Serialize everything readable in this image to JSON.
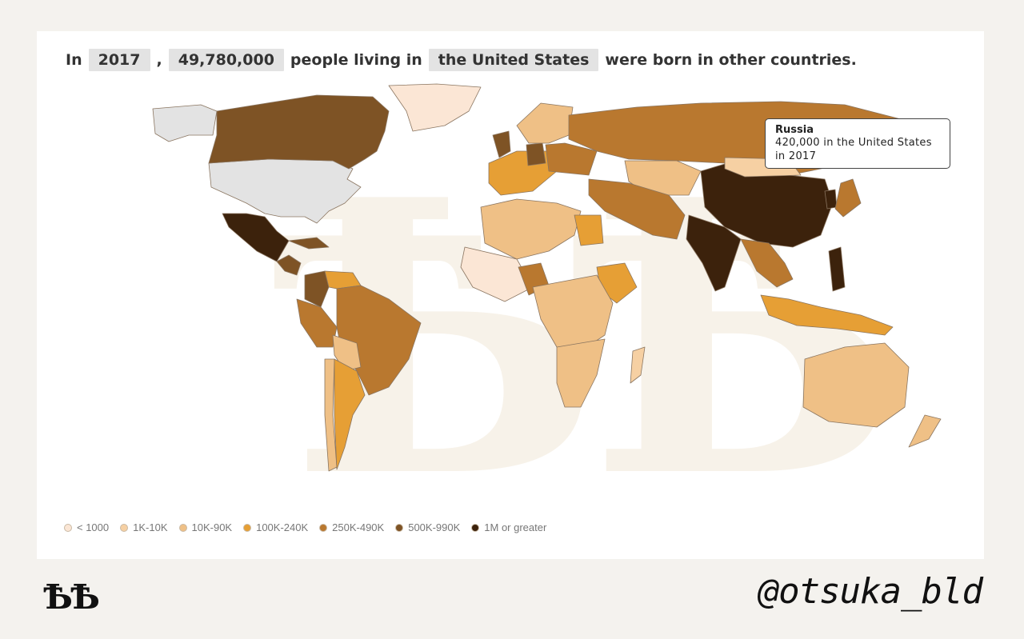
{
  "headline": {
    "prefix": "In",
    "year": "2017",
    "comma": ",",
    "count": "49,780,000",
    "middle": "people living in",
    "country": "the United States",
    "suffix": "were born in other countries."
  },
  "tooltip": {
    "title": "Russia",
    "line1": "420,000 in the United States",
    "line2": "in 2017"
  },
  "legend": [
    {
      "label": "< 1000",
      "color": "#fbe6d5"
    },
    {
      "label": "1K-10K",
      "color": "#f6d0a3"
    },
    {
      "label": "10K-90K",
      "color": "#efc086"
    },
    {
      "label": "100K-240K",
      "color": "#e69f35"
    },
    {
      "label": "250K-490K",
      "color": "#b9782f"
    },
    {
      "label": "500K-990K",
      "color": "#7e5325"
    },
    {
      "label": "1M or greater",
      "color": "#3c220c"
    }
  ],
  "colors": {
    "destination": "#e3e3e3",
    "no_data": "#ffffff",
    "country_stroke": "#8a7560"
  },
  "map_countries": [
    {
      "name": "United States",
      "bin": "destination"
    },
    {
      "name": "Alaska",
      "bin": "destination"
    },
    {
      "name": "Canada",
      "bin": "500K-990K"
    },
    {
      "name": "Greenland",
      "bin": "< 1000"
    },
    {
      "name": "Mexico",
      "bin": "1M or greater"
    },
    {
      "name": "Central America",
      "bin": "500K-990K"
    },
    {
      "name": "Cuba",
      "bin": "500K-990K"
    },
    {
      "name": "Colombia",
      "bin": "500K-990K"
    },
    {
      "name": "Venezuela",
      "bin": "100K-240K"
    },
    {
      "name": "Brazil",
      "bin": "250K-490K"
    },
    {
      "name": "Peru",
      "bin": "250K-490K"
    },
    {
      "name": "Bolivia",
      "bin": "10K-90K"
    },
    {
      "name": "Chile",
      "bin": "10K-90K"
    },
    {
      "name": "Argentina",
      "bin": "100K-240K"
    },
    {
      "name": "Europe West",
      "bin": "100K-240K"
    },
    {
      "name": "United Kingdom",
      "bin": "500K-990K"
    },
    {
      "name": "Germany",
      "bin": "500K-990K"
    },
    {
      "name": "Poland",
      "bin": "250K-490K"
    },
    {
      "name": "Scandinavia",
      "bin": "10K-90K"
    },
    {
      "name": "Russia",
      "bin": "250K-490K"
    },
    {
      "name": "Kazakhstan",
      "bin": "10K-90K"
    },
    {
      "name": "Middle East",
      "bin": "250K-490K"
    },
    {
      "name": "North Africa",
      "bin": "10K-90K"
    },
    {
      "name": "Egypt",
      "bin": "100K-240K"
    },
    {
      "name": "West Africa",
      "bin": "< 1000"
    },
    {
      "name": "Nigeria",
      "bin": "250K-490K"
    },
    {
      "name": "Ethiopia",
      "bin": "100K-240K"
    },
    {
      "name": "Central Africa",
      "bin": "10K-90K"
    },
    {
      "name": "Southern Africa",
      "bin": "10K-90K"
    },
    {
      "name": "Madagascar",
      "bin": "1K-10K"
    },
    {
      "name": "China",
      "bin": "1M or greater"
    },
    {
      "name": "India",
      "bin": "1M or greater"
    },
    {
      "name": "Mongolia",
      "bin": "1K-10K"
    },
    {
      "name": "Korea",
      "bin": "1M or greater"
    },
    {
      "name": "Japan",
      "bin": "250K-490K"
    },
    {
      "name": "Southeast Asia",
      "bin": "250K-490K"
    },
    {
      "name": "Philippines",
      "bin": "1M or greater"
    },
    {
      "name": "Indonesia",
      "bin": "100K-240K"
    },
    {
      "name": "Australia",
      "bin": "10K-90K"
    },
    {
      "name": "New Zealand",
      "bin": "10K-90K"
    }
  ],
  "branding": {
    "logo": "ѢѢ",
    "handle": "@otsuka_bld"
  }
}
